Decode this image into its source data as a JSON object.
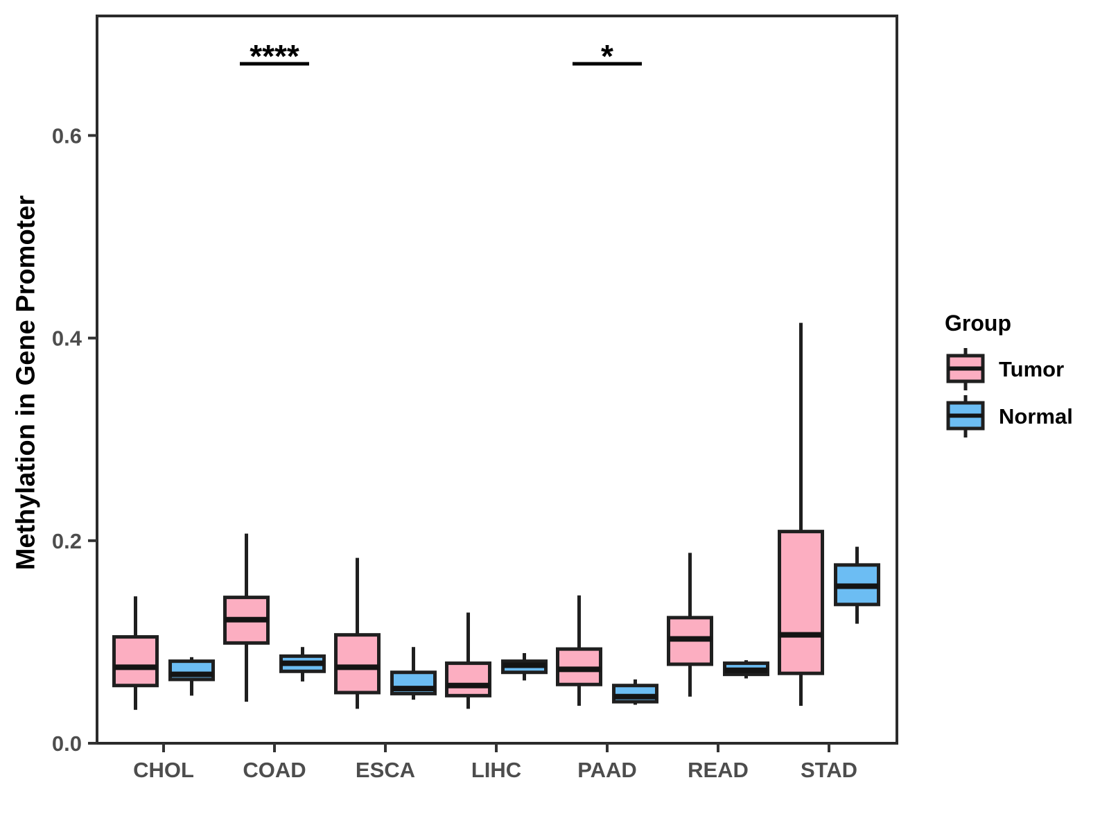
{
  "chart_data": {
    "type": "boxplot",
    "title": "",
    "xlabel": "",
    "ylabel": "Methylation in Gene Promoter",
    "categories": [
      "CHOL",
      "COAD",
      "ESCA",
      "LIHC",
      "PAAD",
      "READ",
      "STAD"
    ],
    "y_tick_labels": [
      "0.0",
      "0.2",
      "0.4",
      "0.6"
    ],
    "ylim": [
      0,
      0.718
    ],
    "grid": false,
    "colors": {
      "tumor": "#FCAEC1",
      "normal": "#6CBDF3"
    },
    "series": [
      {
        "name": "Tumor",
        "boxes": [
          {
            "category": "CHOL",
            "low": 0.033,
            "q1": 0.057,
            "median": 0.075,
            "q3": 0.105,
            "high": 0.145
          },
          {
            "category": "COAD",
            "low": 0.041,
            "q1": 0.099,
            "median": 0.122,
            "q3": 0.144,
            "high": 0.207
          },
          {
            "category": "ESCA",
            "low": 0.034,
            "q1": 0.05,
            "median": 0.075,
            "q3": 0.107,
            "high": 0.183
          },
          {
            "category": "LIHC",
            "low": 0.034,
            "q1": 0.047,
            "median": 0.057,
            "q3": 0.079,
            "high": 0.129
          },
          {
            "category": "PAAD",
            "low": 0.037,
            "q1": 0.058,
            "median": 0.073,
            "q3": 0.093,
            "high": 0.146
          },
          {
            "category": "READ",
            "low": 0.046,
            "q1": 0.078,
            "median": 0.103,
            "q3": 0.124,
            "high": 0.188
          },
          {
            "category": "STAD",
            "low": 0.037,
            "q1": 0.069,
            "median": 0.107,
            "q3": 0.209,
            "high": 0.415
          }
        ]
      },
      {
        "name": "Normal",
        "boxes": [
          {
            "category": "CHOL",
            "low": 0.047,
            "q1": 0.063,
            "median": 0.068,
            "q3": 0.081,
            "high": 0.085
          },
          {
            "category": "COAD",
            "low": 0.061,
            "q1": 0.071,
            "median": 0.079,
            "q3": 0.086,
            "high": 0.095
          },
          {
            "category": "ESCA",
            "low": 0.043,
            "q1": 0.049,
            "median": 0.054,
            "q3": 0.07,
            "high": 0.095
          },
          {
            "category": "LIHC",
            "low": 0.062,
            "q1": 0.07,
            "median": 0.077,
            "q3": 0.081,
            "high": 0.089
          },
          {
            "category": "PAAD",
            "low": 0.038,
            "q1": 0.041,
            "median": 0.046,
            "q3": 0.057,
            "high": 0.063
          },
          {
            "category": "READ",
            "low": 0.064,
            "q1": 0.068,
            "median": 0.072,
            "q3": 0.079,
            "high": 0.082
          },
          {
            "category": "STAD",
            "low": 0.118,
            "q1": 0.137,
            "median": 0.155,
            "q3": 0.176,
            "high": 0.194
          }
        ]
      }
    ],
    "annotations": [
      {
        "category": "COAD",
        "label": "****"
      },
      {
        "category": "PAAD",
        "label": "*"
      }
    ],
    "legend": {
      "title": "Group",
      "entries": [
        {
          "label": "Tumor",
          "color_key": "tumor"
        },
        {
          "label": "Normal",
          "color_key": "normal"
        }
      ],
      "position": "right"
    }
  }
}
